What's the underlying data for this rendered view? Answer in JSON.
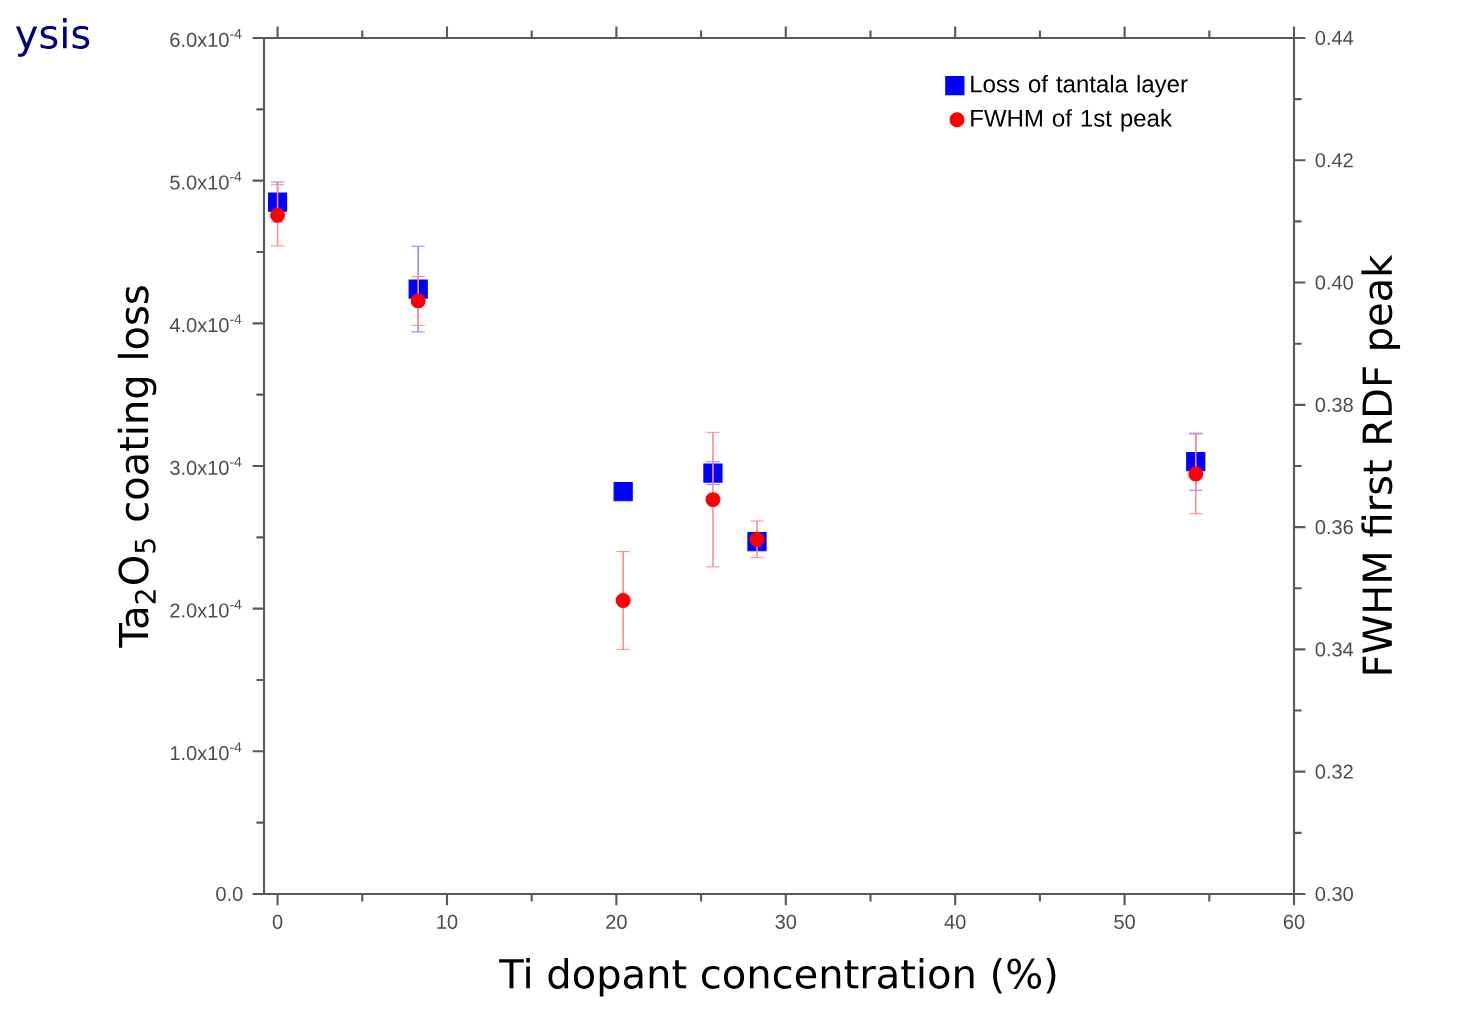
{
  "chart_data": {
    "type": "scatter",
    "title": "ysis",
    "xlabel": "Ti dopant concentration (%)",
    "ylabel": "Ta$_{2}$O$_{5}$ coating loss",
    "y2label": "FWHM first RDF peak",
    "xlim": [
      -0.8,
      60
    ],
    "xticks": [
      0,
      10,
      20,
      30,
      40,
      50,
      60
    ],
    "ylim": [
      0,
      0.0006
    ],
    "yticks": [
      {
        "value": 0,
        "label": "0.0"
      },
      {
        "value": 0.0001,
        "label": "1.0x10$^{-4}$"
      },
      {
        "value": 0.0002,
        "label": "2.0x10$^{-4}$"
      },
      {
        "value": 0.0003,
        "label": "3.0x10$^{-4}$"
      },
      {
        "value": 0.0004,
        "label": "4.0x10$^{-4}$"
      },
      {
        "value": 0.0005,
        "label": "5.0x10$^{-4}$"
      },
      {
        "value": 0.0006,
        "label": "6.0x10$^{-4}$"
      }
    ],
    "y2lim": [
      0.3,
      0.44
    ],
    "y2ticks": [
      {
        "value": 0.3,
        "label": "0.30"
      },
      {
        "value": 0.32,
        "label": "0.32"
      },
      {
        "value": 0.34,
        "label": "0.34"
      },
      {
        "value": 0.36,
        "label": "0.36"
      },
      {
        "value": 0.38,
        "label": "0.38"
      },
      {
        "value": 0.4,
        "label": "0.40"
      },
      {
        "value": 0.42,
        "label": "0.42"
      },
      {
        "value": 0.44,
        "label": "0.44"
      }
    ],
    "legend": "top right",
    "grid": false,
    "series": [
      {
        "name": "Loss of tantala layer",
        "color": "#0000ff",
        "marker": "square",
        "x": [
          0,
          8.3,
          20.4,
          25.7,
          28.3,
          54.2
        ],
        "values": [
          0.000485,
          0.000424,
          0.000282,
          0.000295,
          0.000247,
          0.000303
        ],
        "errors": [
          1.4e-05,
          3e-05,
          5e-06,
          8e-06,
          5e-06,
          2e-05
        ]
      },
      {
        "name": "FWHM of 1st peak",
        "color": "#ff0000",
        "marker": "circle",
        "axis": "y2",
        "x": [
          0,
          8.3,
          20.4,
          25.7,
          28.3,
          54.2
        ],
        "values": [
          0.411,
          0.397,
          0.348,
          0.3645,
          0.358,
          0.3687
        ],
        "errors": [
          0.005,
          0.004,
          0.008,
          0.011,
          0.003,
          0.0065
        ]
      }
    ]
  }
}
